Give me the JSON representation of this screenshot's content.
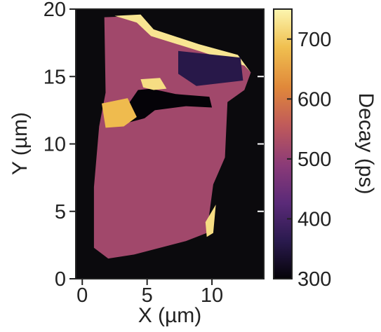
{
  "chart_data": {
    "type": "heatmap",
    "title": "",
    "xlabel": "X (µm)",
    "ylabel": "Y (µm)",
    "xlim": [
      -0.5,
      14
    ],
    "ylim": [
      0,
      20
    ],
    "x_ticks": [
      {
        "value": 0,
        "label": "0"
      },
      {
        "value": 5,
        "label": "5"
      },
      {
        "value": 10,
        "label": "10"
      }
    ],
    "y_ticks": [
      {
        "value": 0,
        "label": "0"
      },
      {
        "value": 5,
        "label": "5"
      },
      {
        "value": 10,
        "label": "10"
      },
      {
        "value": 15,
        "label": "15"
      },
      {
        "value": 20,
        "label": "20"
      }
    ],
    "colorbar": {
      "label": "Decay (ps)",
      "range": [
        300,
        750
      ],
      "ticks": [
        {
          "value": 300,
          "label": "300"
        },
        {
          "value": 400,
          "label": "400"
        },
        {
          "value": 500,
          "label": "500"
        },
        {
          "value": 600,
          "label": "600"
        },
        {
          "value": 700,
          "label": "700"
        }
      ],
      "colormap": "inferno-like",
      "colors": [
        "#050308",
        "#2a1a4e",
        "#5a2a78",
        "#8a3a78",
        "#c05a5a",
        "#e0883a",
        "#f0c050",
        "#fcf6b0"
      ]
    },
    "background_color": "#0b0a0d",
    "regions": [
      {
        "description": "cell",
        "polygon": [
          [
            1.7,
            19.4
          ],
          [
            4.5,
            19.5
          ],
          [
            5.3,
            18.4
          ],
          [
            9,
            17.2
          ],
          [
            12,
            16.3
          ],
          [
            13,
            15.3
          ],
          [
            12.5,
            14
          ],
          [
            11.2,
            13.1
          ],
          [
            11,
            9
          ],
          [
            10.1,
            7
          ],
          [
            9.6,
            3.4
          ],
          [
            8,
            2.8
          ],
          [
            4,
            1.8
          ],
          [
            2,
            1.5
          ],
          [
            0.9,
            2.3
          ],
          [
            0.9,
            6.8
          ],
          [
            1.3,
            11.3
          ],
          [
            1.8,
            13.8
          ]
        ],
        "value": 520
      },
      {
        "description": "bright edge",
        "polygon": [
          [
            2.5,
            19.5
          ],
          [
            4.5,
            19.6
          ],
          [
            5.5,
            18.5
          ],
          [
            9,
            17.4
          ],
          [
            12,
            16.6
          ],
          [
            13,
            15.3
          ],
          [
            12.5,
            15.8
          ],
          [
            9,
            16.9
          ],
          [
            5.3,
            18
          ],
          [
            4.2,
            19
          ]
        ],
        "value": 730
      },
      {
        "description": "dark void",
        "polygon": [
          [
            4.3,
            14
          ],
          [
            5.3,
            14.1
          ],
          [
            7.2,
            13.7
          ],
          [
            9.8,
            13.5
          ],
          [
            10,
            12.7
          ],
          [
            8,
            12.8
          ],
          [
            5.6,
            12.5
          ],
          [
            4.8,
            11.9
          ],
          [
            3.6,
            11.6
          ],
          [
            3.3,
            12.6
          ]
        ],
        "value": 300
      },
      {
        "description": "bright ring",
        "polygon": [
          [
            4.5,
            14.8
          ],
          [
            6,
            14.9
          ],
          [
            6.5,
            14.1
          ],
          [
            5.5,
            14
          ],
          [
            4.7,
            14.2
          ]
        ],
        "value": 720
      },
      {
        "description": "bright left patch",
        "polygon": [
          [
            1.5,
            13
          ],
          [
            3.5,
            13.4
          ],
          [
            4.2,
            12
          ],
          [
            3.2,
            11.3
          ],
          [
            1.8,
            11.2
          ]
        ],
        "value": 680
      },
      {
        "description": "bright right edge",
        "polygon": [
          [
            9.5,
            4.2
          ],
          [
            10.3,
            5.5
          ],
          [
            10.1,
            3.4
          ],
          [
            9.6,
            3.1
          ]
        ],
        "value": 720
      },
      {
        "description": "dark top band",
        "polygon": [
          [
            7.4,
            16.9
          ],
          [
            12.2,
            16.4
          ],
          [
            12.4,
            14.7
          ],
          [
            8.8,
            14.3
          ],
          [
            7.4,
            15.2
          ]
        ],
        "value": 360
      }
    ]
  }
}
